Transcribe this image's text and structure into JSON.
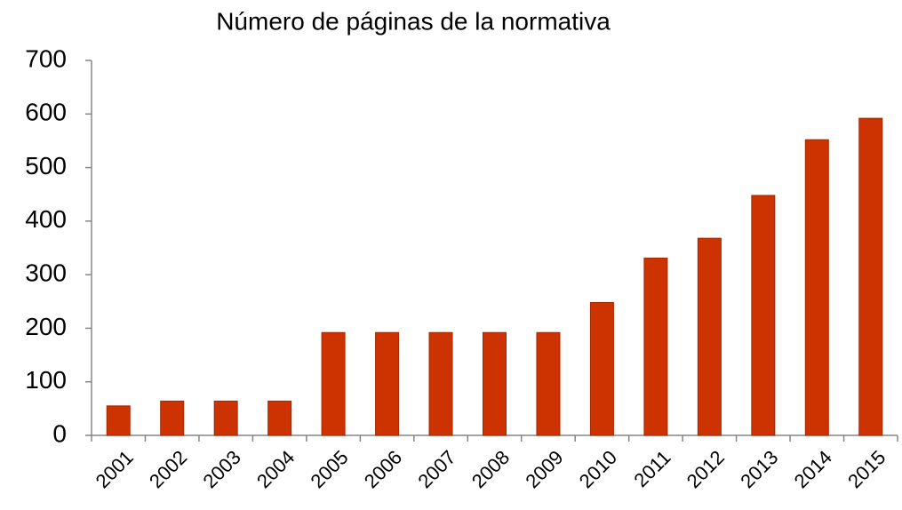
{
  "chart_data": {
    "type": "bar",
    "title": "Número de páginas de la normativa",
    "categories": [
      "2001",
      "2002",
      "2003",
      "2004",
      "2005",
      "2006",
      "2007",
      "2008",
      "2009",
      "2010",
      "2011",
      "2012",
      "2013",
      "2014",
      "2015"
    ],
    "values": [
      55,
      64,
      64,
      64,
      192,
      192,
      192,
      192,
      192,
      248,
      331,
      368,
      448,
      552,
      592
    ],
    "color": "#cc3300",
    "ylim": [
      0,
      700
    ],
    "yticks": [
      0,
      100,
      200,
      300,
      400,
      500,
      600,
      700
    ],
    "grid": false
  }
}
